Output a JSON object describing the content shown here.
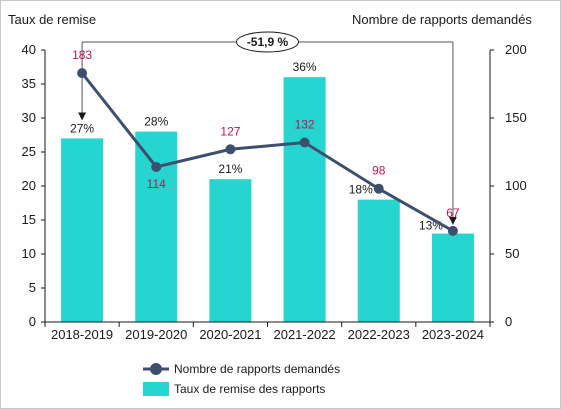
{
  "chart_data": {
    "type": "bar",
    "categories": [
      "2018-2019",
      "2019-2020",
      "2020-2021",
      "2021-2022",
      "2022-2023",
      "2023-2024"
    ],
    "y_left_label": "Taux de remise",
    "y_right_label": "Nombre de rapports demandés",
    "y_left_ticks": [
      "0",
      "5",
      "10",
      "15",
      "20",
      "25",
      "30",
      "35",
      "40"
    ],
    "y_right_ticks": [
      "0",
      "50",
      "100",
      "150",
      "200"
    ],
    "ylim_left": [
      0,
      40
    ],
    "ylim_right": [
      0,
      200
    ],
    "series": [
      {
        "name": "Taux de remise des rapports",
        "type": "bar",
        "axis": "left",
        "color": "#26d4d0",
        "values": [
          27,
          28,
          21,
          36,
          18,
          13
        ],
        "labels": [
          "27%",
          "28%",
          "21%",
          "36%",
          "18%",
          "13%"
        ]
      },
      {
        "name": "Nombre de rapports demandés",
        "type": "line",
        "axis": "right",
        "color": "#3d4f6e",
        "label_color": "#c0154a",
        "values": [
          183,
          114,
          127,
          132,
          98,
          67
        ],
        "labels": [
          "183",
          "114",
          "127",
          "132",
          "98",
          "67"
        ]
      }
    ],
    "annotation": {
      "text": "-51,9 %",
      "from_category": "2018-2019",
      "to_category": "2023-2024"
    },
    "legend_position": "bottom",
    "grid": false
  }
}
